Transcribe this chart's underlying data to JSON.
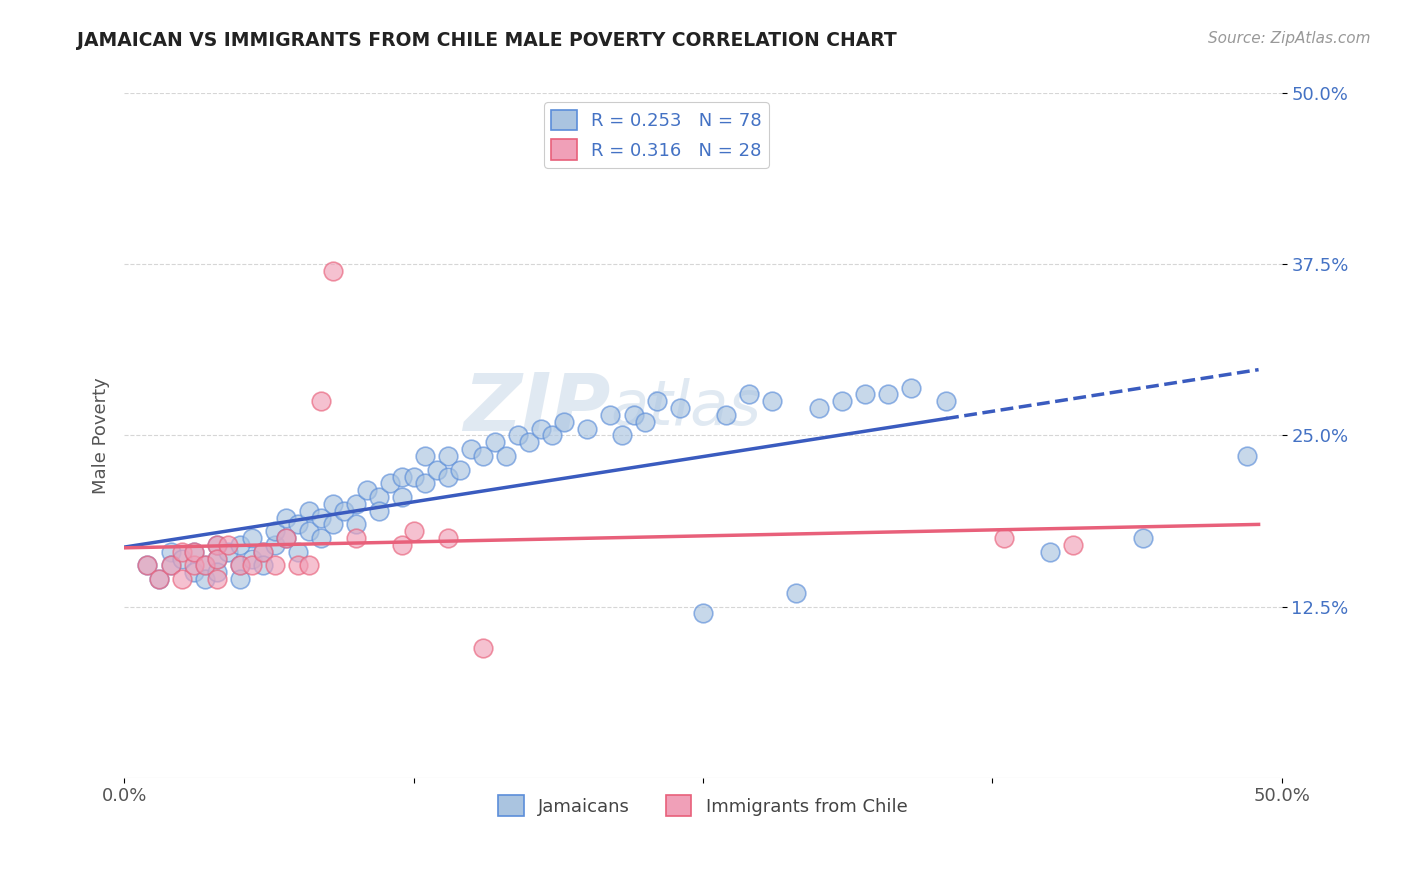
{
  "title": "JAMAICAN VS IMMIGRANTS FROM CHILE MALE POVERTY CORRELATION CHART",
  "source_text": "Source: ZipAtlas.com",
  "ylabel": "Male Poverty",
  "xlim": [
    0.0,
    0.5
  ],
  "ylim": [
    0.0,
    0.5
  ],
  "xticks": [
    0.0,
    0.125,
    0.25,
    0.375,
    0.5
  ],
  "xticklabels": [
    "0.0%",
    "",
    "",
    "",
    "50.0%"
  ],
  "yticks": [
    0.125,
    0.25,
    0.375,
    0.5
  ],
  "yticklabels": [
    "12.5%",
    "25.0%",
    "37.5%",
    "50.0%"
  ],
  "blue_color": "#aac4e0",
  "pink_color": "#f0a0b8",
  "blue_edge_color": "#5b8dd9",
  "pink_edge_color": "#e8607a",
  "blue_line_color": "#3a5bbf",
  "pink_line_color": "#e8607a",
  "r_blue": 0.253,
  "n_blue": 78,
  "r_pink": 0.316,
  "n_pink": 28,
  "watermark_zip": "ZIP",
  "watermark_atlas": "atlas",
  "legend_label_blue": "Jamaicans",
  "legend_label_pink": "Immigrants from Chile",
  "blue_scatter": [
    [
      0.01,
      0.155
    ],
    [
      0.015,
      0.145
    ],
    [
      0.02,
      0.165
    ],
    [
      0.02,
      0.155
    ],
    [
      0.025,
      0.16
    ],
    [
      0.03,
      0.15
    ],
    [
      0.03,
      0.165
    ],
    [
      0.035,
      0.155
    ],
    [
      0.035,
      0.145
    ],
    [
      0.04,
      0.16
    ],
    [
      0.04,
      0.17
    ],
    [
      0.04,
      0.15
    ],
    [
      0.045,
      0.165
    ],
    [
      0.05,
      0.155
    ],
    [
      0.05,
      0.17
    ],
    [
      0.05,
      0.145
    ],
    [
      0.055,
      0.16
    ],
    [
      0.055,
      0.175
    ],
    [
      0.06,
      0.165
    ],
    [
      0.06,
      0.155
    ],
    [
      0.065,
      0.17
    ],
    [
      0.065,
      0.18
    ],
    [
      0.07,
      0.175
    ],
    [
      0.07,
      0.19
    ],
    [
      0.075,
      0.185
    ],
    [
      0.075,
      0.165
    ],
    [
      0.08,
      0.18
    ],
    [
      0.08,
      0.195
    ],
    [
      0.085,
      0.19
    ],
    [
      0.085,
      0.175
    ],
    [
      0.09,
      0.185
    ],
    [
      0.09,
      0.2
    ],
    [
      0.095,
      0.195
    ],
    [
      0.1,
      0.2
    ],
    [
      0.1,
      0.185
    ],
    [
      0.105,
      0.21
    ],
    [
      0.11,
      0.205
    ],
    [
      0.11,
      0.195
    ],
    [
      0.115,
      0.215
    ],
    [
      0.12,
      0.22
    ],
    [
      0.12,
      0.205
    ],
    [
      0.125,
      0.22
    ],
    [
      0.13,
      0.215
    ],
    [
      0.13,
      0.235
    ],
    [
      0.135,
      0.225
    ],
    [
      0.14,
      0.22
    ],
    [
      0.14,
      0.235
    ],
    [
      0.145,
      0.225
    ],
    [
      0.15,
      0.24
    ],
    [
      0.155,
      0.235
    ],
    [
      0.16,
      0.245
    ],
    [
      0.165,
      0.235
    ],
    [
      0.17,
      0.25
    ],
    [
      0.175,
      0.245
    ],
    [
      0.18,
      0.255
    ],
    [
      0.185,
      0.25
    ],
    [
      0.19,
      0.26
    ],
    [
      0.2,
      0.255
    ],
    [
      0.21,
      0.265
    ],
    [
      0.215,
      0.25
    ],
    [
      0.22,
      0.265
    ],
    [
      0.225,
      0.26
    ],
    [
      0.23,
      0.275
    ],
    [
      0.24,
      0.27
    ],
    [
      0.25,
      0.12
    ],
    [
      0.26,
      0.265
    ],
    [
      0.27,
      0.28
    ],
    [
      0.28,
      0.275
    ],
    [
      0.29,
      0.135
    ],
    [
      0.3,
      0.27
    ],
    [
      0.31,
      0.275
    ],
    [
      0.32,
      0.28
    ],
    [
      0.33,
      0.28
    ],
    [
      0.34,
      0.285
    ],
    [
      0.355,
      0.275
    ],
    [
      0.4,
      0.165
    ],
    [
      0.44,
      0.175
    ],
    [
      0.485,
      0.235
    ]
  ],
  "pink_scatter": [
    [
      0.01,
      0.155
    ],
    [
      0.015,
      0.145
    ],
    [
      0.02,
      0.155
    ],
    [
      0.025,
      0.165
    ],
    [
      0.025,
      0.145
    ],
    [
      0.03,
      0.155
    ],
    [
      0.03,
      0.165
    ],
    [
      0.035,
      0.155
    ],
    [
      0.04,
      0.17
    ],
    [
      0.04,
      0.145
    ],
    [
      0.04,
      0.16
    ],
    [
      0.045,
      0.17
    ],
    [
      0.05,
      0.155
    ],
    [
      0.055,
      0.155
    ],
    [
      0.06,
      0.165
    ],
    [
      0.065,
      0.155
    ],
    [
      0.07,
      0.175
    ],
    [
      0.075,
      0.155
    ],
    [
      0.08,
      0.155
    ],
    [
      0.085,
      0.275
    ],
    [
      0.09,
      0.37
    ],
    [
      0.1,
      0.175
    ],
    [
      0.12,
      0.17
    ],
    [
      0.125,
      0.18
    ],
    [
      0.14,
      0.175
    ],
    [
      0.155,
      0.095
    ],
    [
      0.38,
      0.175
    ],
    [
      0.41,
      0.17
    ]
  ]
}
